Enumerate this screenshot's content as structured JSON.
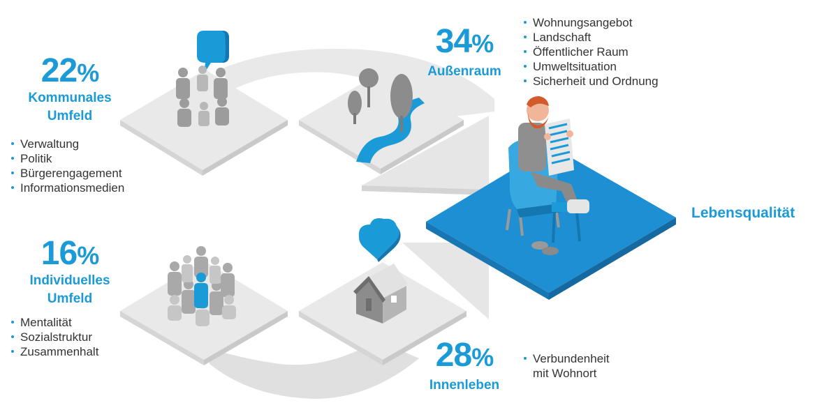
{
  "segments": {
    "kommunal": {
      "percent": "22",
      "percent_symbol": "%",
      "title_line1": "Kommunales",
      "title_line2": "Umfeld",
      "items": [
        "Verwaltung",
        "Politik",
        "Bürgerengagement",
        "Informationsmedien"
      ]
    },
    "aussenraum": {
      "percent": "34",
      "percent_symbol": "%",
      "title_line1": "Außenraum",
      "items": [
        "Wohnungsangebot",
        "Landschaft",
        "Öffentlicher Raum",
        "Umweltsituation",
        "Sicherheit und Ordnung"
      ]
    },
    "individuell": {
      "percent": "16",
      "percent_symbol": "%",
      "title_line1": "Individuelles",
      "title_line2": "Umfeld",
      "items": [
        "Mentalität",
        "Sozialstruktur",
        "Zusammenhalt"
      ]
    },
    "innenleben": {
      "percent": "28",
      "percent_symbol": "%",
      "title_line1": "Innenleben",
      "items": [
        "Verbundenheit",
        "mit Wohnort"
      ]
    }
  },
  "result_label": "Lebensqualität",
  "colors": {
    "accent_blue": "#1a9ad6",
    "floor_blue": "#1e8fd3",
    "tile_gray": "#e7e7e8",
    "text": "#333333"
  },
  "icons": {
    "kommunal": "people-circle-speech-bubble-icon",
    "aussenraum": "trees-river-icon",
    "individuell": "crowd-icon",
    "innenleben": "house-heart-icon",
    "result": "man-reading-newspaper-armchair-icon"
  }
}
